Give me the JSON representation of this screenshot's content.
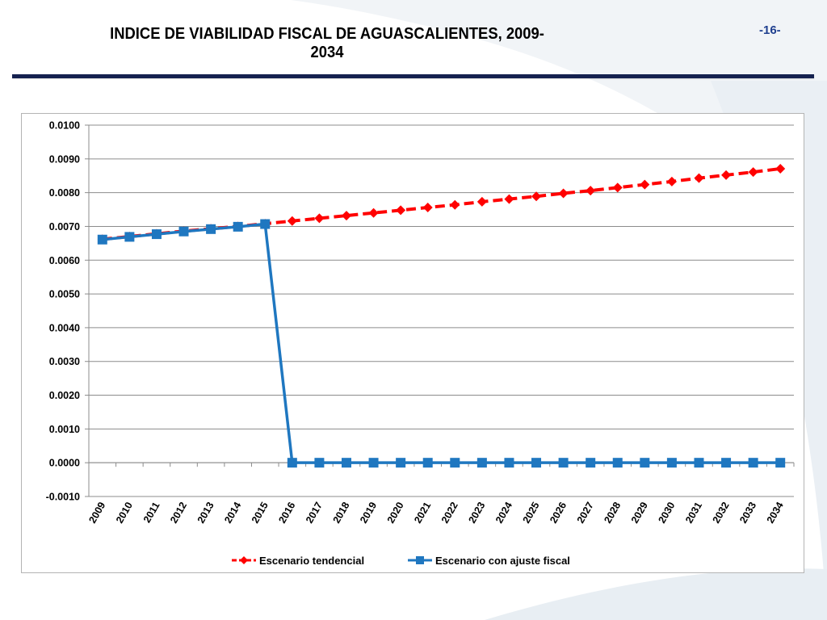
{
  "slide": {
    "title": "INDICE DE VIABILIDAD FISCAL DE AGUASCALIENTES, 2009-2034",
    "page_number": "-16-"
  },
  "colors": {
    "title_rule": "#15214f",
    "series_tendencial": "#ff0000",
    "series_ajuste": "#1f77c0",
    "background_decor": "#eef2f6"
  },
  "chart_data": {
    "type": "line",
    "title": "",
    "xlabel": "",
    "ylabel": "",
    "ylim": [
      -0.001,
      0.01
    ],
    "y_ticks": [
      "0.0100",
      "0.0090",
      "0.0080",
      "0.0070",
      "0.0060",
      "0.0050",
      "0.0040",
      "0.0030",
      "0.0020",
      "0.0010",
      "0.0000",
      "-0.0010"
    ],
    "grid": true,
    "legend_position": "bottom",
    "categories": [
      "2009",
      "2010",
      "2011",
      "2012",
      "2013",
      "2014",
      "2015",
      "2016",
      "2017",
      "2018",
      "2019",
      "2020",
      "2021",
      "2022",
      "2023",
      "2024",
      "2025",
      "2026",
      "2027",
      "2028",
      "2029",
      "2030",
      "2031",
      "2032",
      "2033",
      "2034"
    ],
    "series": [
      {
        "name": "Escenario tendencial",
        "color": "#ff0000",
        "line_style": "dashed",
        "marker": "diamond",
        "values": [
          0.00662,
          0.0067,
          0.00678,
          0.00686,
          0.00693,
          0.007,
          0.00708,
          0.00716,
          0.00724,
          0.00732,
          0.0074,
          0.00748,
          0.00756,
          0.00764,
          0.00773,
          0.00781,
          0.00789,
          0.00798,
          0.00806,
          0.00815,
          0.00824,
          0.00833,
          0.00843,
          0.00852,
          0.00861,
          0.00871
        ]
      },
      {
        "name": "Escenario con ajuste fiscal",
        "color": "#1f77c0",
        "line_style": "solid",
        "marker": "square",
        "values": [
          0.00661,
          0.00669,
          0.00677,
          0.00685,
          0.00692,
          0.00699,
          0.00707,
          0.0,
          0.0,
          0.0,
          0.0,
          0.0,
          0.0,
          0.0,
          0.0,
          0.0,
          0.0,
          0.0,
          0.0,
          0.0,
          0.0,
          0.0,
          0.0,
          0.0,
          0.0,
          0.0
        ]
      }
    ]
  }
}
